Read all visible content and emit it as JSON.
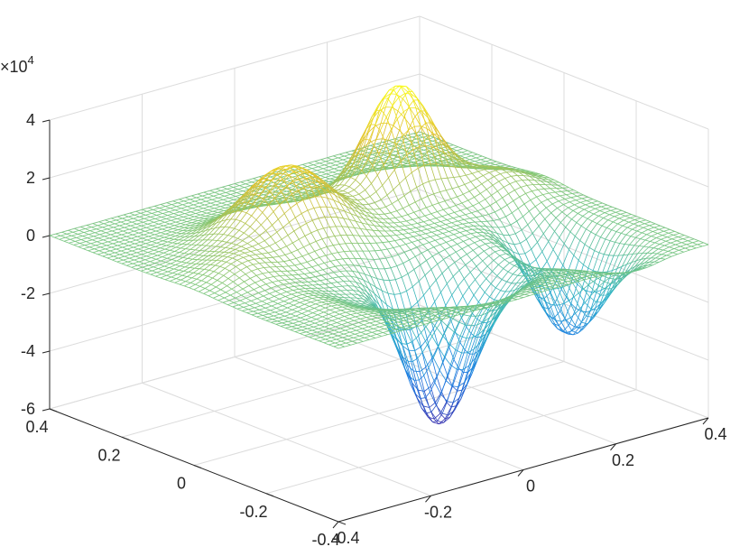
{
  "chart_data": {
    "type": "surface-mesh",
    "title": "",
    "xlabel": "",
    "ylabel": "",
    "zlabel": "",
    "xlim": [
      -0.4,
      0.4
    ],
    "ylim": [
      -0.4,
      0.4
    ],
    "zlim": [
      -6,
      4
    ],
    "z_exponent_label": "×10",
    "z_exponent_power": "4",
    "x_ticks": [
      "-0.4",
      "-0.2",
      "0",
      "0.2",
      "0.4"
    ],
    "y_ticks": [
      "-0.4",
      "-0.2",
      "0",
      "0.2",
      "0.4"
    ],
    "z_ticks": [
      "-6",
      "-4",
      "-2",
      "0",
      "2",
      "4"
    ],
    "grid": true,
    "colormap": "parula",
    "colors": [
      "#3e26a8",
      "#1a7be2",
      "#2db3c8",
      "#7cc678",
      "#e0c02e",
      "#f9fb15"
    ],
    "mesh_resolution": 60,
    "features": [
      {
        "x": 0.16,
        "y": 0.15,
        "peak": 3.9
      },
      {
        "x": -0.12,
        "y": 0.1,
        "peak": 2.5
      },
      {
        "x": 0.0,
        "y": -0.2,
        "peak": -5.5
      },
      {
        "x": 0.25,
        "y": -0.2,
        "peak": -3.5
      },
      {
        "x": -0.3,
        "y": 0.0,
        "peak": 0.5
      }
    ]
  }
}
